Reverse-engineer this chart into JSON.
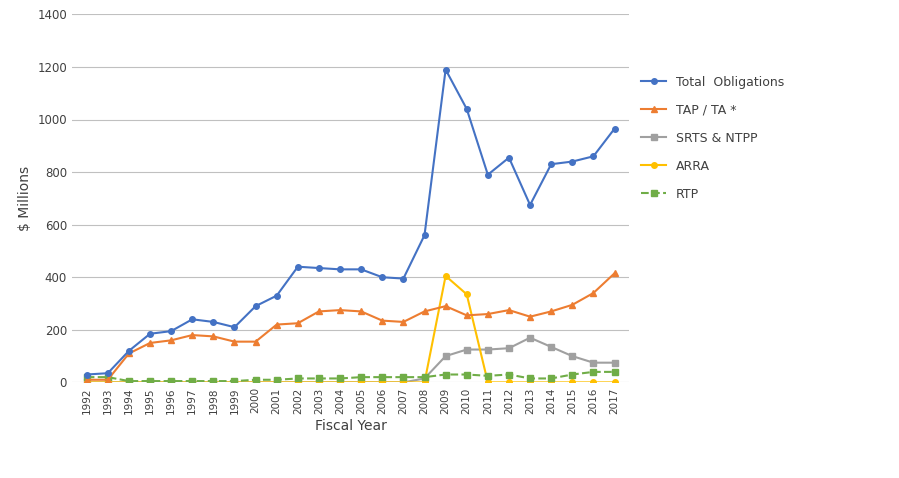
{
  "years": [
    1992,
    1993,
    1994,
    1995,
    1996,
    1997,
    1998,
    1999,
    2000,
    2001,
    2002,
    2003,
    2004,
    2005,
    2006,
    2007,
    2008,
    2009,
    2010,
    2011,
    2012,
    2013,
    2014,
    2015,
    2016,
    2017
  ],
  "total_obligations": [
    30,
    35,
    120,
    185,
    195,
    240,
    230,
    210,
    290,
    330,
    440,
    435,
    430,
    430,
    400,
    395,
    560,
    1190,
    1040,
    790,
    855,
    675,
    830,
    840,
    860,
    965
  ],
  "tap_ta": [
    10,
    10,
    110,
    150,
    160,
    180,
    175,
    155,
    155,
    220,
    225,
    270,
    275,
    270,
    235,
    230,
    270,
    290,
    255,
    260,
    275,
    250,
    270,
    295,
    340,
    415
  ],
  "srts_ntpp": [
    0,
    0,
    0,
    0,
    0,
    0,
    0,
    0,
    0,
    0,
    0,
    0,
    0,
    0,
    0,
    0,
    15,
    100,
    125,
    125,
    130,
    170,
    135,
    100,
    75,
    75
  ],
  "arra": [
    0,
    0,
    0,
    0,
    0,
    0,
    0,
    0,
    0,
    0,
    0,
    0,
    0,
    0,
    0,
    0,
    0,
    405,
    335,
    0,
    0,
    0,
    0,
    0,
    0,
    0
  ],
  "rtp": [
    20,
    20,
    5,
    5,
    5,
    5,
    5,
    5,
    10,
    10,
    15,
    15,
    15,
    20,
    20,
    20,
    20,
    30,
    30,
    25,
    30,
    15,
    15,
    30,
    40,
    40
  ],
  "total_color": "#4472C4",
  "tap_color": "#ED7D31",
  "srts_color": "#A0A0A0",
  "arra_color": "#FFC000",
  "rtp_color": "#70AD47",
  "xlabel": "Fiscal Year",
  "ylabel": "$ Millions",
  "ylim": [
    0,
    1400
  ],
  "yticks": [
    0,
    200,
    400,
    600,
    800,
    1000,
    1200,
    1400
  ],
  "legend_labels": [
    "Total  Obligations",
    "TAP / TA *",
    "SRTS & NTPP",
    "ARRA",
    "RTP"
  ],
  "background_color": "#FFFFFF",
  "grid_color": "#C0C0C0"
}
